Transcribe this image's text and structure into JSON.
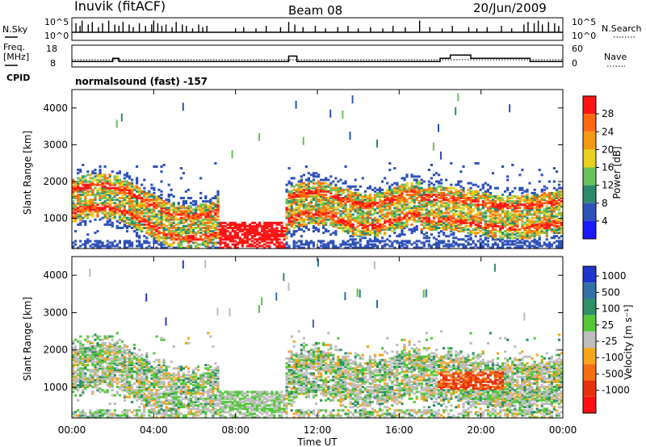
{
  "chart_data": [
    {
      "type": "line",
      "title": "Inuvik (fitACF)",
      "beam_label": "Beam 08",
      "date": "20/Jun/2009",
      "left_label": "N.Sky",
      "left_ticks": [
        "10^5",
        "10^0"
      ],
      "right_label": "N.Search",
      "right_ticks": [
        "10^5",
        "10^0"
      ],
      "spike_hours": [
        0.2,
        0.4,
        0.5,
        0.8,
        1.0,
        1.3,
        1.5,
        1.8,
        2.1,
        2.3,
        2.5,
        2.8,
        3.0,
        3.3,
        3.6,
        3.9,
        4.0,
        4.2,
        4.4,
        4.6,
        4.9,
        5.1,
        5.4,
        5.6,
        5.9,
        6.2,
        6.4,
        6.6,
        8.0,
        8.4,
        9.0,
        9.5,
        10.2,
        10.6,
        10.9,
        11.3,
        11.9,
        12.4,
        13.0,
        13.5,
        14.0,
        14.6,
        15.2,
        15.7,
        16.3,
        17.0,
        17.5,
        18.1,
        18.6,
        19.4,
        19.8,
        20.3,
        21.0,
        21.5,
        22.1,
        22.3,
        22.6,
        22.8,
        23.0,
        23.3,
        23.6,
        23.8
      ],
      "spike_levels": [
        0.7,
        0.5,
        0.9,
        0.6,
        0.8,
        0.4,
        0.7,
        0.9,
        0.6,
        0.5,
        0.8,
        0.6,
        0.4,
        0.7,
        0.5,
        0.6,
        0.9,
        0.7,
        0.5,
        0.6,
        0.4,
        0.8,
        0.6,
        0.5,
        0.3,
        0.6,
        0.4,
        0.5,
        0.3,
        0.4,
        0.3,
        0.5,
        0.4,
        0.8,
        0.6,
        0.4,
        0.5,
        0.3,
        0.4,
        0.5,
        0.3,
        0.4,
        0.3,
        0.5,
        0.4,
        0.9,
        0.4,
        0.3,
        0.5,
        0.4,
        0.3,
        0.4,
        0.5,
        0.3,
        0.6,
        0.8,
        0.7,
        0.9,
        0.6,
        0.8,
        0.7,
        0.5
      ]
    },
    {
      "type": "line",
      "left_label": "Freq.",
      "left_unit": "[MHz]",
      "left_ticks": [
        "18",
        "8"
      ],
      "right_ticks": [
        "60",
        "0"
      ],
      "right_label": "Nave",
      "cpid_label": "CPID",
      "program_label": "normalsound (fast) -157",
      "freq_steps": [
        [
          0,
          10.5
        ],
        [
          2.0,
          12.0
        ],
        [
          2.3,
          10.5
        ],
        [
          10.6,
          13.0
        ],
        [
          11.0,
          10.5
        ],
        [
          17.0,
          10.5
        ],
        [
          18.0,
          12.0
        ],
        [
          18.5,
          13.5
        ],
        [
          19.5,
          12.0
        ],
        [
          21.5,
          12.0
        ],
        [
          22.4,
          10.5
        ],
        [
          24,
          10.5
        ]
      ],
      "nave_level": 20
    },
    {
      "type": "heatmap",
      "ylabel": "Slant Range [km]",
      "y_ticks": [
        "1000",
        "2000",
        "3000",
        "4000"
      ],
      "ylim": [
        180,
        4500
      ],
      "cbar_label": "Power [dB]",
      "cbar_ticks": [
        "4",
        "8",
        "12",
        "16",
        "20",
        "24",
        "28"
      ],
      "cbar_colors": [
        "#1a1aff",
        "#2e52b8",
        "#2e8a6e",
        "#68c25b",
        "#e8d21e",
        "#f49a12",
        "#ff6a10",
        "#ff1414"
      ],
      "xlim": [
        0,
        24
      ]
    },
    {
      "type": "heatmap",
      "ylabel": "Slant Range [km]",
      "y_ticks": [
        "1000",
        "2000",
        "3000",
        "4000"
      ],
      "ylim": [
        180,
        4500
      ],
      "cbar_label": "Velocity [m s⁻¹]",
      "cbar_ticks": [
        "1000",
        "500",
        "100",
        "25",
        "-25",
        "-100",
        "-500",
        "-1000"
      ],
      "cbar_colors": [
        "#2035cc",
        "#3370a8",
        "#2e9065",
        "#55c83a",
        "#bdbdbd",
        "#f7a51a",
        "#f46e12",
        "#e8300e",
        "#ff1010"
      ],
      "x_ticks": [
        "00:00",
        "04:00",
        "08:00",
        "12:00",
        "16:00",
        "20:00",
        "00:00"
      ],
      "xlabel": "Time UT",
      "xlim": [
        0,
        24
      ]
    }
  ]
}
